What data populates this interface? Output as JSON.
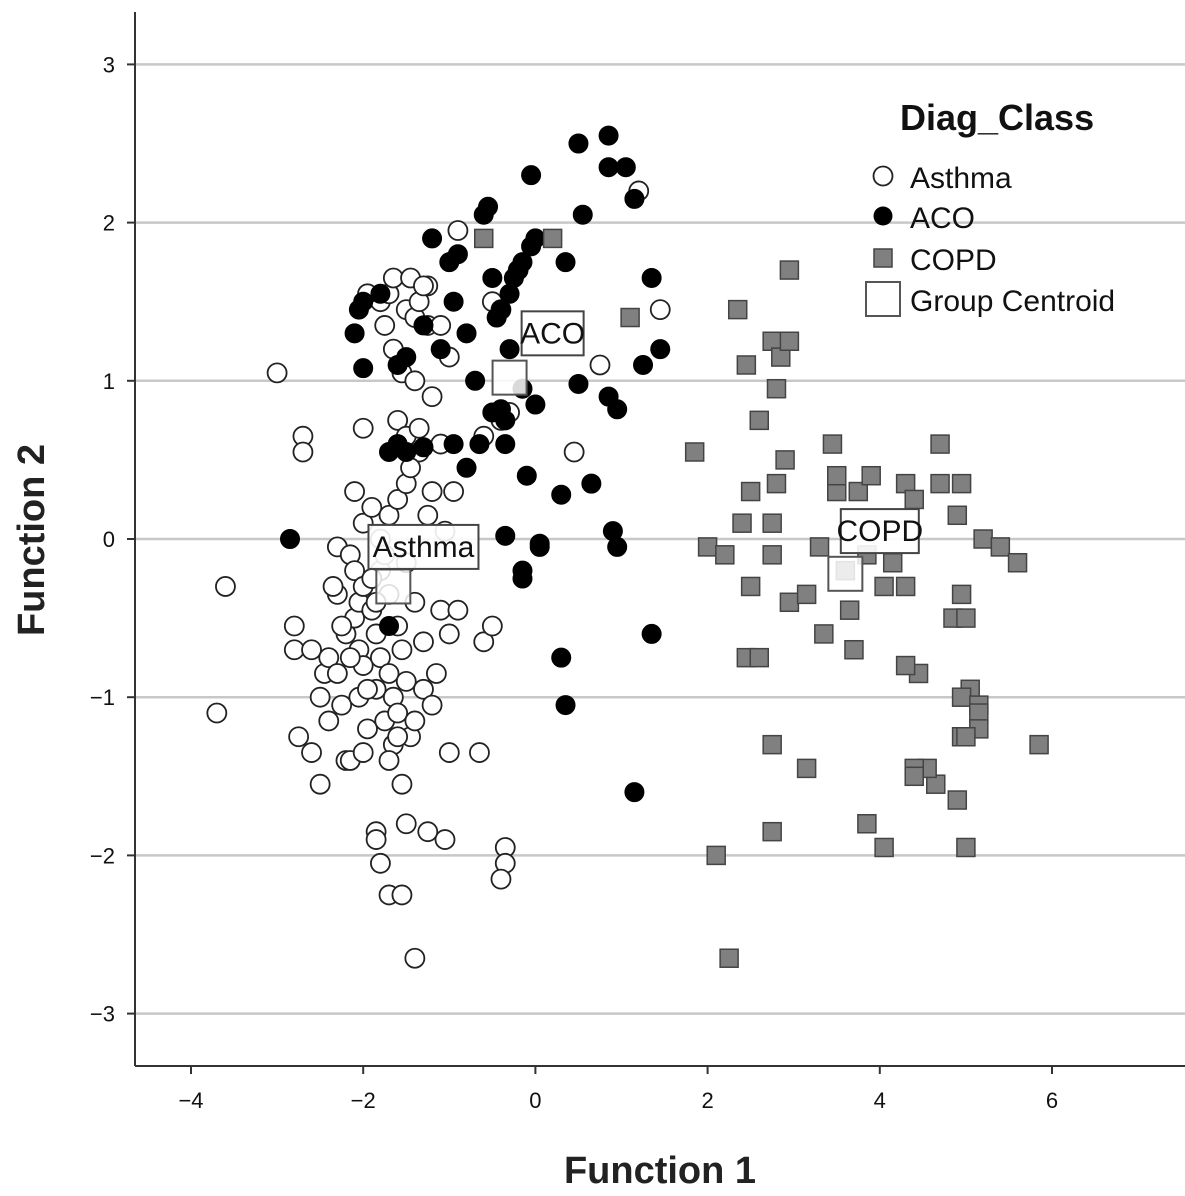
{
  "chart_data": {
    "type": "scatter",
    "title": "",
    "xlabel": "Function 1",
    "ylabel": "Function 2",
    "xlim": [
      -4.5,
      7.5
    ],
    "ylim": [
      -3.35,
      3.35
    ],
    "xticks": [
      -4,
      -2,
      0,
      2,
      4,
      6
    ],
    "xtick_labels": [
      "-4",
      "-2",
      "0",
      "2",
      "4",
      "6"
    ],
    "yticks": [
      3,
      2,
      1,
      0,
      -1,
      -2,
      -3
    ],
    "ytick_labels": [
      "3",
      "2",
      "1",
      "0",
      "-1",
      "-2",
      "-3"
    ],
    "grid": "horizontal",
    "legend": {
      "title": "Diag_Class",
      "position": "top-right",
      "entries": [
        "Asthma",
        "ACO",
        "COPD",
        "Group Centroid"
      ]
    },
    "colors": {
      "asthma_fill": "#ffffff",
      "aco_fill": "#000000",
      "copd_fill": "#808080",
      "gridline": "#c8c8c8",
      "axis": "#333333"
    },
    "series": [
      {
        "name": "Asthma",
        "marker": "open-circle",
        "points": [
          [
            -3.7,
            -1.1
          ],
          [
            -3.6,
            -0.3
          ],
          [
            -3.0,
            1.05
          ],
          [
            -2.8,
            -0.55
          ],
          [
            -2.8,
            -0.7
          ],
          [
            -2.7,
            0.65
          ],
          [
            -2.7,
            0.55
          ],
          [
            -2.75,
            -1.25
          ],
          [
            -2.6,
            -1.35
          ],
          [
            -2.6,
            -0.7
          ],
          [
            -2.5,
            -1.0
          ],
          [
            -2.5,
            -1.55
          ],
          [
            -2.45,
            -0.85
          ],
          [
            -2.4,
            -0.75
          ],
          [
            -2.4,
            -1.15
          ],
          [
            -2.3,
            -0.35
          ],
          [
            -2.3,
            -0.05
          ],
          [
            -2.3,
            -0.85
          ],
          [
            -2.25,
            -1.05
          ],
          [
            -2.2,
            -0.6
          ],
          [
            -2.2,
            -1.4
          ],
          [
            -2.15,
            -0.1
          ],
          [
            -2.1,
            0.3
          ],
          [
            -2.1,
            -0.2
          ],
          [
            -2.1,
            -0.5
          ],
          [
            -2.05,
            -0.4
          ],
          [
            -2.05,
            -0.7
          ],
          [
            -2.05,
            -1.0
          ],
          [
            -2.0,
            0.1
          ],
          [
            -2.0,
            -0.3
          ],
          [
            -2.0,
            0.7
          ],
          [
            -2.0,
            -0.8
          ],
          [
            -1.95,
            -1.2
          ],
          [
            -1.9,
            0.2
          ],
          [
            -1.9,
            -0.45
          ],
          [
            -1.85,
            -0.6
          ],
          [
            -1.85,
            -0.95
          ],
          [
            -1.8,
            0.0
          ],
          [
            -1.8,
            -0.2
          ],
          [
            -1.8,
            -0.75
          ],
          [
            -1.75,
            -1.15
          ],
          [
            -1.7,
            0.15
          ],
          [
            -1.7,
            -0.35
          ],
          [
            -1.7,
            -0.85
          ],
          [
            -1.65,
            -1.0
          ],
          [
            -1.65,
            -1.3
          ],
          [
            -1.6,
            0.25
          ],
          [
            -1.6,
            -0.55
          ],
          [
            -1.6,
            -1.1
          ],
          [
            -1.55,
            -0.7
          ],
          [
            -1.5,
            0.35
          ],
          [
            -1.5,
            -0.15
          ],
          [
            -1.5,
            -0.9
          ],
          [
            -1.45,
            -1.25
          ],
          [
            -1.4,
            -0.4
          ],
          [
            -1.4,
            -1.15
          ],
          [
            -1.35,
            0.55
          ],
          [
            -1.3,
            -0.65
          ],
          [
            -1.3,
            -0.95
          ],
          [
            -1.25,
            0.15
          ],
          [
            -1.2,
            -1.05
          ],
          [
            -1.2,
            0.3
          ],
          [
            -1.15,
            -0.85
          ],
          [
            -1.1,
            -0.45
          ],
          [
            -1.1,
            0.6
          ],
          [
            -1.05,
            0.05
          ],
          [
            -1.0,
            -0.6
          ],
          [
            -1.0,
            -1.35
          ],
          [
            -0.95,
            0.3
          ],
          [
            -0.9,
            -0.45
          ],
          [
            -1.6,
            0.75
          ],
          [
            -1.5,
            0.65
          ],
          [
            -1.45,
            0.45
          ],
          [
            -1.35,
            0.7
          ],
          [
            -1.2,
            0.9
          ],
          [
            -1.65,
            1.2
          ],
          [
            -1.5,
            1.45
          ],
          [
            -1.4,
            1.4
          ],
          [
            -1.35,
            1.5
          ],
          [
            -1.25,
            1.6
          ],
          [
            -1.25,
            1.35
          ],
          [
            -1.55,
            1.05
          ],
          [
            -1.4,
            1.0
          ],
          [
            -1.1,
            1.35
          ],
          [
            -1.0,
            1.15
          ],
          [
            -1.75,
            1.35
          ],
          [
            -1.8,
            1.5
          ],
          [
            -1.7,
            1.55
          ],
          [
            -1.95,
            1.55
          ],
          [
            -1.65,
            1.65
          ],
          [
            -1.45,
            1.65
          ],
          [
            -1.3,
            1.6
          ],
          [
            -0.9,
            1.95
          ],
          [
            -0.5,
            1.5
          ],
          [
            -0.4,
            1.45
          ],
          [
            -0.2,
            1.7
          ],
          [
            -0.6,
            0.65
          ],
          [
            -0.4,
            0.75
          ],
          [
            -0.3,
            0.8
          ],
          [
            0.45,
            0.55
          ],
          [
            0.75,
            1.1
          ],
          [
            1.45,
            1.45
          ],
          [
            1.2,
            2.2
          ],
          [
            -0.6,
            -0.65
          ],
          [
            -0.5,
            -0.55
          ],
          [
            -0.65,
            -1.35
          ],
          [
            -0.35,
            -1.95
          ],
          [
            -0.35,
            -2.05
          ],
          [
            -0.4,
            -2.15
          ],
          [
            -1.05,
            -1.9
          ],
          [
            -1.25,
            -1.85
          ],
          [
            -1.5,
            -1.8
          ],
          [
            -1.85,
            -1.85
          ],
          [
            -1.85,
            -1.9
          ],
          [
            -1.8,
            -2.05
          ],
          [
            -1.7,
            -2.25
          ],
          [
            -1.55,
            -2.25
          ],
          [
            -1.4,
            -2.65
          ],
          [
            -1.55,
            -1.55
          ],
          [
            -1.7,
            -1.4
          ],
          [
            -2.15,
            -1.4
          ],
          [
            -2.0,
            -1.35
          ],
          [
            -1.6,
            -1.25
          ],
          [
            -1.85,
            -0.4
          ],
          [
            -1.75,
            -0.1
          ],
          [
            -1.95,
            -0.95
          ],
          [
            -2.25,
            -0.55
          ],
          [
            -2.35,
            -0.3
          ],
          [
            -2.15,
            -0.75
          ],
          [
            -1.9,
            -0.25
          ]
        ]
      },
      {
        "name": "ACO",
        "marker": "filled-circle",
        "points": [
          [
            -2.85,
            0.0
          ],
          [
            -2.1,
            1.3
          ],
          [
            -2.05,
            1.45
          ],
          [
            -2.0,
            1.5
          ],
          [
            -2.0,
            1.08
          ],
          [
            -1.8,
            1.55
          ],
          [
            -1.6,
            1.1
          ],
          [
            -1.5,
            1.15
          ],
          [
            -1.3,
            1.35
          ],
          [
            -1.2,
            1.9
          ],
          [
            -1.1,
            1.2
          ],
          [
            -1.0,
            1.75
          ],
          [
            -0.95,
            1.5
          ],
          [
            -0.8,
            1.3
          ],
          [
            -0.7,
            1.0
          ],
          [
            -0.6,
            2.05
          ],
          [
            -0.55,
            2.1
          ],
          [
            -0.5,
            1.65
          ],
          [
            -0.45,
            1.4
          ],
          [
            -0.4,
            1.45
          ],
          [
            -0.3,
            1.2
          ],
          [
            -0.25,
            1.65
          ],
          [
            -0.2,
            1.7
          ],
          [
            -0.15,
            1.75
          ],
          [
            -0.05,
            1.85
          ],
          [
            0.0,
            1.9
          ],
          [
            -0.05,
            2.3
          ],
          [
            0.35,
            1.75
          ],
          [
            0.5,
            2.5
          ],
          [
            0.55,
            2.05
          ],
          [
            0.85,
            2.55
          ],
          [
            0.85,
            2.35
          ],
          [
            1.05,
            2.35
          ],
          [
            1.15,
            2.15
          ],
          [
            1.35,
            1.65
          ],
          [
            1.45,
            1.2
          ],
          [
            1.25,
            1.1
          ],
          [
            0.95,
            0.82
          ],
          [
            0.85,
            0.9
          ],
          [
            0.5,
            0.98
          ],
          [
            -0.1,
            0.4
          ],
          [
            -0.15,
            -0.25
          ],
          [
            -0.15,
            -0.2
          ],
          [
            0.05,
            -0.05
          ],
          [
            0.3,
            0.28
          ],
          [
            0.3,
            -0.75
          ],
          [
            0.35,
            -1.05
          ],
          [
            0.65,
            0.35
          ],
          [
            0.9,
            0.05
          ],
          [
            1.35,
            -0.6
          ],
          [
            1.15,
            -1.6
          ],
          [
            -0.35,
            0.6
          ],
          [
            -0.4,
            0.82
          ],
          [
            -0.65,
            0.6
          ],
          [
            -0.8,
            0.45
          ],
          [
            -0.95,
            0.6
          ],
          [
            -1.3,
            0.58
          ],
          [
            -1.5,
            0.55
          ],
          [
            -1.6,
            0.6
          ],
          [
            -1.7,
            0.55
          ],
          [
            -0.35,
            0.75
          ],
          [
            -0.15,
            0.95
          ],
          [
            0.0,
            0.85
          ],
          [
            -1.7,
            -0.55
          ],
          [
            -0.35,
            0.02
          ],
          [
            0.05,
            -0.03
          ],
          [
            0.95,
            -0.05
          ],
          [
            -0.9,
            1.8
          ],
          [
            -0.3,
            1.55
          ],
          [
            -0.5,
            0.8
          ]
        ]
      },
      {
        "name": "COPD",
        "marker": "filled-square",
        "points": [
          [
            -0.6,
            1.9
          ],
          [
            0.2,
            1.9
          ],
          [
            1.1,
            1.4
          ],
          [
            2.35,
            1.45
          ],
          [
            2.45,
            1.1
          ],
          [
            2.6,
            0.75
          ],
          [
            2.75,
            1.25
          ],
          [
            2.85,
            1.15
          ],
          [
            2.95,
            1.25
          ],
          [
            2.8,
            0.95
          ],
          [
            2.95,
            1.7
          ],
          [
            1.85,
            0.55
          ],
          [
            2.5,
            0.3
          ],
          [
            2.8,
            0.35
          ],
          [
            2.9,
            0.5
          ],
          [
            2.75,
            0.1
          ],
          [
            2.4,
            0.1
          ],
          [
            2.0,
            -0.05
          ],
          [
            2.2,
            -0.1
          ],
          [
            2.75,
            -0.1
          ],
          [
            2.5,
            -0.3
          ],
          [
            2.95,
            -0.4
          ],
          [
            3.15,
            -0.35
          ],
          [
            3.3,
            -0.05
          ],
          [
            3.45,
            0.6
          ],
          [
            3.5,
            0.3
          ],
          [
            3.5,
            0.4
          ],
          [
            3.75,
            0.3
          ],
          [
            3.9,
            0.4
          ],
          [
            3.85,
            -0.1
          ],
          [
            4.05,
            -0.3
          ],
          [
            4.3,
            -0.3
          ],
          [
            4.3,
            0.35
          ],
          [
            4.4,
            0.25
          ],
          [
            4.7,
            0.6
          ],
          [
            4.7,
            0.35
          ],
          [
            4.95,
            0.35
          ],
          [
            4.9,
            0.15
          ],
          [
            5.2,
            0.0
          ],
          [
            5.4,
            -0.05
          ],
          [
            5.6,
            -0.15
          ],
          [
            4.95,
            -0.35
          ],
          [
            4.85,
            -0.5
          ],
          [
            5.0,
            -0.5
          ],
          [
            5.05,
            -0.95
          ],
          [
            4.95,
            -1.0
          ],
          [
            5.15,
            -1.05
          ],
          [
            5.15,
            -1.1
          ],
          [
            5.15,
            -1.2
          ],
          [
            4.95,
            -1.25
          ],
          [
            5.0,
            -1.25
          ],
          [
            4.9,
            -1.65
          ],
          [
            5.0,
            -1.95
          ],
          [
            4.65,
            -1.55
          ],
          [
            4.55,
            -1.45
          ],
          [
            4.4,
            -1.45
          ],
          [
            4.4,
            -1.5
          ],
          [
            4.45,
            -0.85
          ],
          [
            4.3,
            -0.8
          ],
          [
            3.65,
            -0.45
          ],
          [
            3.7,
            -0.7
          ],
          [
            3.35,
            -0.6
          ],
          [
            2.45,
            -0.75
          ],
          [
            2.6,
            -0.75
          ],
          [
            2.75,
            -1.3
          ],
          [
            3.15,
            -1.45
          ],
          [
            2.75,
            -1.85
          ],
          [
            2.1,
            -2.0
          ],
          [
            2.25,
            -2.65
          ],
          [
            3.85,
            -1.8
          ],
          [
            4.05,
            -1.95
          ],
          [
            5.85,
            -1.3
          ],
          [
            3.6,
            -0.2
          ],
          [
            4.15,
            -0.15
          ]
        ]
      },
      {
        "name": "Group Centroid",
        "marker": "open-square",
        "points": [
          [
            -0.3,
            1.02
          ],
          [
            -1.65,
            -0.3
          ],
          [
            3.6,
            -0.22
          ]
        ],
        "labels": [
          "ACO",
          "Asthma",
          "COPD"
        ],
        "label_points": [
          [
            0.2,
            1.3
          ],
          [
            -1.3,
            -0.05
          ],
          [
            4.0,
            0.05
          ]
        ]
      }
    ]
  }
}
